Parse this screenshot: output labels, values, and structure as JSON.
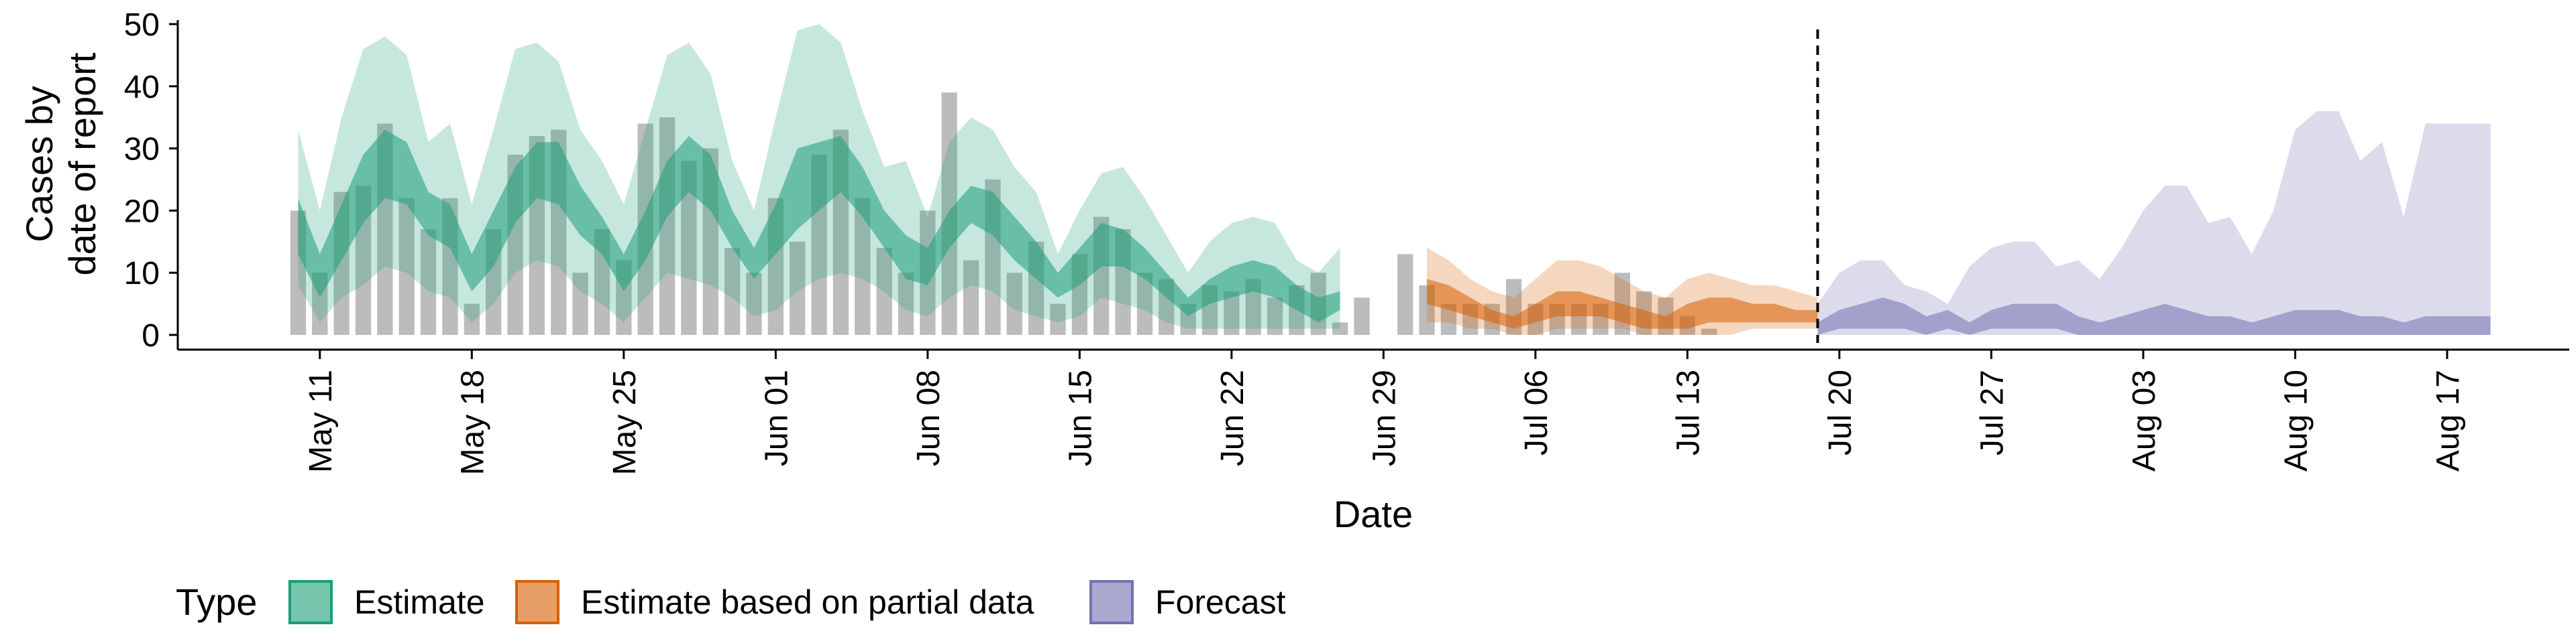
{
  "chart_data": {
    "type": "area",
    "ylabel_lines": [
      "Cases by",
      "date of report"
    ],
    "xlabel": "Date",
    "ylim": [
      0,
      50
    ],
    "y_ticks": [
      0,
      10,
      20,
      30,
      40,
      50
    ],
    "x_range": [
      "2020-05-06",
      "2020-08-20"
    ],
    "x_ticks": [
      {
        "date": "2020-05-11",
        "label": "May 11"
      },
      {
        "date": "2020-05-18",
        "label": "May 18"
      },
      {
        "date": "2020-05-25",
        "label": "May 25"
      },
      {
        "date": "2020-06-01",
        "label": "Jun 01"
      },
      {
        "date": "2020-06-08",
        "label": "Jun 08"
      },
      {
        "date": "2020-06-15",
        "label": "Jun 15"
      },
      {
        "date": "2020-06-22",
        "label": "Jun 22"
      },
      {
        "date": "2020-06-29",
        "label": "Jun 29"
      },
      {
        "date": "2020-07-06",
        "label": "Jul 06"
      },
      {
        "date": "2020-07-13",
        "label": "Jul 13"
      },
      {
        "date": "2020-07-20",
        "label": "Jul 20"
      },
      {
        "date": "2020-07-27",
        "label": "Jul 27"
      },
      {
        "date": "2020-08-03",
        "label": "Aug 03"
      },
      {
        "date": "2020-08-10",
        "label": "Aug 10"
      },
      {
        "date": "2020-08-17",
        "label": "Aug 17"
      }
    ],
    "vline_date": "2020-07-19",
    "legend": {
      "title": "Type",
      "position": "bottom",
      "entries": [
        "Estimate",
        "Estimate based on partial data",
        "Forecast"
      ]
    },
    "colors": {
      "Estimate": "#1b9e77",
      "Estimate based on partial data": "#d95f02",
      "Forecast": "#7570b3",
      "bars": "#a6a6a6"
    },
    "bars": {
      "start_date": "2020-05-10",
      "values": [
        20,
        10,
        23,
        24,
        34,
        22,
        17,
        22,
        5,
        17,
        29,
        32,
        33,
        10,
        17,
        12,
        34,
        35,
        28,
        30,
        14,
        10,
        22,
        15,
        29,
        33,
        22,
        14,
        10,
        20,
        39,
        12,
        25,
        10,
        15,
        5,
        13,
        19,
        17,
        10,
        9,
        5,
        8,
        7,
        9,
        6,
        8,
        10,
        2,
        6,
        0,
        13,
        8,
        5,
        5,
        5,
        9,
        5,
        5,
        5,
        5,
        10,
        7,
        6,
        3,
        1
      ]
    },
    "series": [
      {
        "name": "Estimate",
        "start_date": "2020-05-10",
        "outer_low": [
          8,
          2,
          6,
          8,
          11,
          10,
          7,
          6,
          2,
          5,
          10,
          12,
          11,
          7,
          5,
          2,
          6,
          10,
          9,
          8,
          6,
          3,
          4,
          7,
          9,
          10,
          9,
          7,
          4,
          3,
          6,
          8,
          7,
          4,
          3,
          2,
          3,
          6,
          5,
          4,
          2,
          1,
          1,
          1,
          1,
          1,
          1,
          1,
          1
        ],
        "outer_high": [
          33,
          20,
          35,
          46,
          48,
          45,
          31,
          34,
          21,
          33,
          46,
          47,
          44,
          33,
          28,
          21,
          33,
          45,
          47,
          42,
          28,
          20,
          35,
          49,
          50,
          47,
          36,
          27,
          28,
          19,
          31,
          35,
          33,
          27,
          23,
          13,
          20,
          26,
          27,
          22,
          16,
          10,
          15,
          18,
          19,
          18,
          12,
          10,
          14
        ],
        "inner_low": [
          13,
          6,
          12,
          18,
          22,
          21,
          16,
          14,
          7,
          11,
          18,
          22,
          21,
          16,
          13,
          7,
          12,
          19,
          23,
          20,
          14,
          9,
          13,
          17,
          20,
          23,
          19,
          14,
          9,
          8,
          14,
          18,
          16,
          12,
          9,
          6,
          8,
          11,
          11,
          9,
          6,
          3,
          5,
          6,
          7,
          6,
          4,
          2,
          4
        ],
        "inner_high": [
          22,
          13,
          21,
          29,
          33,
          31,
          23,
          21,
          13,
          20,
          27,
          31,
          31,
          24,
          19,
          13,
          20,
          28,
          32,
          29,
          20,
          14,
          21,
          30,
          31,
          32,
          27,
          20,
          16,
          14,
          20,
          24,
          23,
          19,
          15,
          10,
          14,
          18,
          17,
          14,
          10,
          6,
          9,
          11,
          12,
          11,
          8,
          6,
          7
        ]
      },
      {
        "name": "Estimate based on partial data",
        "start_date": "2020-07-01",
        "outer_low": [
          2,
          2,
          1,
          1,
          0,
          0,
          1,
          1,
          1,
          1,
          0,
          0,
          0,
          0,
          0,
          1,
          1,
          1,
          1
        ],
        "outer_high": [
          14,
          12,
          9,
          7,
          6,
          9,
          12,
          12,
          11,
          9,
          7,
          6,
          9,
          10,
          9,
          8,
          8,
          7,
          6
        ],
        "inner_low": [
          5,
          4,
          3,
          2,
          1,
          2,
          3,
          3,
          3,
          2,
          1,
          1,
          1,
          2,
          2,
          2,
          2,
          2,
          2
        ],
        "inner_high": [
          9,
          8,
          6,
          4,
          3,
          5,
          7,
          7,
          6,
          5,
          4,
          3,
          5,
          6,
          6,
          5,
          5,
          4,
          4
        ]
      },
      {
        "name": "Forecast",
        "start_date": "2020-07-19",
        "outer_low": [
          0,
          0,
          0,
          0,
          0,
          0,
          0,
          0,
          0,
          0,
          0,
          0,
          0,
          0,
          0,
          0,
          0,
          0,
          0,
          0,
          0,
          0,
          0,
          0,
          0,
          0,
          0,
          0,
          0,
          0,
          0,
          0
        ],
        "outer_high": [
          5,
          10,
          12,
          12,
          8,
          7,
          5,
          11,
          14,
          15,
          15,
          11,
          12,
          9,
          14,
          20,
          24,
          24,
          18,
          19,
          13,
          20,
          33,
          36,
          36,
          28,
          31,
          19,
          34,
          34,
          34,
          34
        ],
        "inner_low": [
          0,
          1,
          1,
          1,
          1,
          0,
          1,
          0,
          1,
          1,
          1,
          1,
          0,
          0,
          0,
          0,
          0,
          0,
          0,
          0,
          0,
          0,
          0,
          0,
          0,
          0,
          0,
          0,
          0,
          0,
          0,
          0
        ],
        "inner_high": [
          2,
          4,
          5,
          6,
          5,
          3,
          4,
          2,
          4,
          5,
          5,
          5,
          3,
          2,
          3,
          4,
          5,
          4,
          3,
          3,
          2,
          3,
          4,
          4,
          4,
          3,
          3,
          2,
          3,
          3,
          3,
          3
        ]
      }
    ]
  }
}
